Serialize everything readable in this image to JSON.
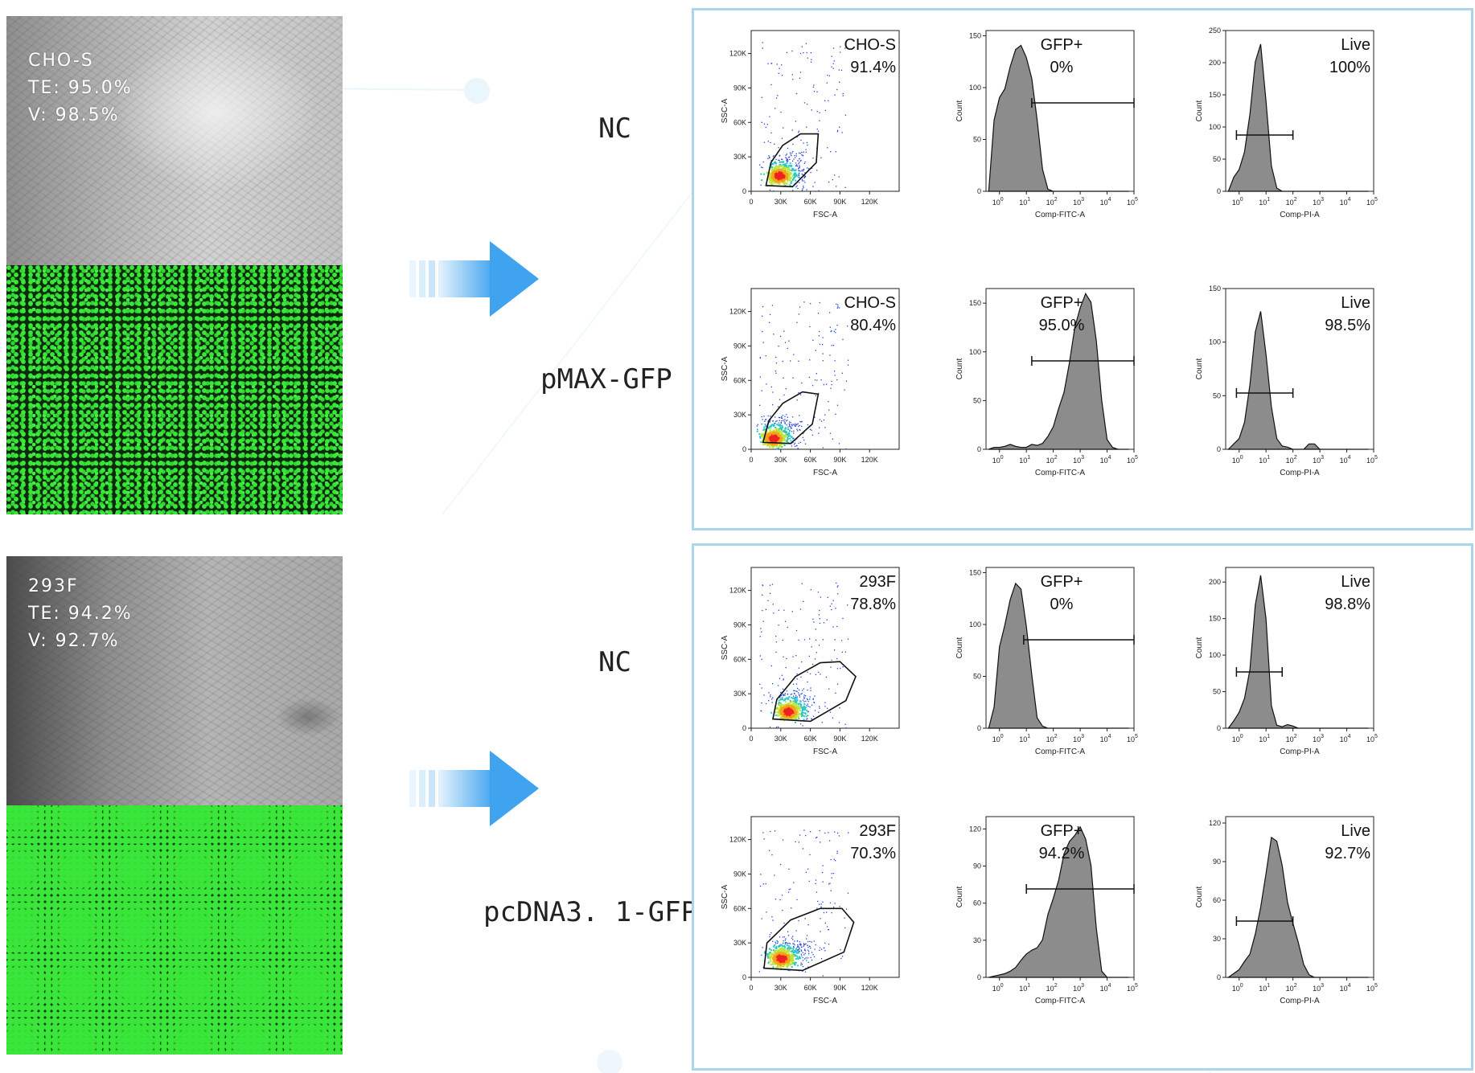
{
  "colors": {
    "panel_border": "#a9d6ea",
    "arrow": "#3fa3ef",
    "histogram_fill": "#8c8c8c",
    "gfp_green": "#39e639"
  },
  "rows": [
    {
      "cell_label": "CHO-S",
      "te": "TE: 95.0%",
      "v": "V: 98.5%",
      "conditions": [
        {
          "name": "NC",
          "scatter": {
            "population": "CHO-S",
            "percent": "91.4%",
            "xlabel": "FSC-A",
            "ylabel": "SSC-A",
            "xticks": [
              "0",
              "30K",
              "60K",
              "90K",
              "120K"
            ],
            "yticks": [
              "0",
              "30K",
              "60K",
              "90K",
              "120K"
            ]
          },
          "gfp": {
            "title": "GFP+",
            "percent": "0%",
            "xlabel": "Comp-FITC-A",
            "ylabel": "Count",
            "yticks": [
              "0",
              "50",
              "100",
              "150"
            ]
          },
          "live": {
            "title": "Live",
            "percent": "100%",
            "xlabel": "Comp-PI-A",
            "ylabel": "Count",
            "yticks": [
              "0",
              "50",
              "100",
              "150",
              "200",
              "250"
            ]
          }
        },
        {
          "name": "pMAX-GFP",
          "scatter": {
            "population": "CHO-S",
            "percent": "80.4%",
            "xlabel": "FSC-A",
            "ylabel": "SSC-A",
            "xticks": [
              "0",
              "30K",
              "60K",
              "90K",
              "120K"
            ],
            "yticks": [
              "0",
              "30K",
              "60K",
              "90K",
              "120K"
            ]
          },
          "gfp": {
            "title": "GFP+",
            "percent": "95.0%",
            "xlabel": "Comp-FITC-A",
            "ylabel": "Count",
            "yticks": [
              "0",
              "50",
              "100",
              "150"
            ]
          },
          "live": {
            "title": "Live",
            "percent": "98.5%",
            "xlabel": "Comp-PI-A",
            "ylabel": "Count",
            "yticks": [
              "0",
              "50",
              "100",
              "150"
            ]
          }
        }
      ]
    },
    {
      "cell_label": "293F",
      "te": "TE: 94.2%",
      "v": "V: 92.7%",
      "conditions": [
        {
          "name": "NC",
          "scatter": {
            "population": "293F",
            "percent": "78.8%",
            "xlabel": "FSC-A",
            "ylabel": "SSC-A",
            "xticks": [
              "0",
              "30K",
              "60K",
              "90K",
              "120K"
            ],
            "yticks": [
              "0",
              "30K",
              "60K",
              "90K",
              "120K"
            ]
          },
          "gfp": {
            "title": "GFP+",
            "percent": "0%",
            "xlabel": "Comp-FITC-A",
            "ylabel": "Count",
            "yticks": [
              "0",
              "50",
              "100",
              "150"
            ]
          },
          "live": {
            "title": "Live",
            "percent": "98.8%",
            "xlabel": "Comp-PI-A",
            "ylabel": "Count",
            "yticks": [
              "0",
              "50",
              "100",
              "150",
              "200"
            ]
          }
        },
        {
          "name": "pcDNA3. 1-GFP",
          "scatter": {
            "population": "293F",
            "percent": "70.3%",
            "xlabel": "FSC-A",
            "ylabel": "SSC-A",
            "xticks": [
              "0",
              "30K",
              "60K",
              "90K",
              "120K"
            ],
            "yticks": [
              "0",
              "30K",
              "60K",
              "90K",
              "120K"
            ]
          },
          "gfp": {
            "title": "GFP+",
            "percent": "94.2%",
            "xlabel": "Comp-FITC-A",
            "ylabel": "Count",
            "yticks": [
              "0",
              "30",
              "60",
              "90",
              "120"
            ]
          },
          "live": {
            "title": "Live",
            "percent": "92.7%",
            "xlabel": "Comp-PI-A",
            "ylabel": "Count",
            "yticks": [
              "0",
              "30",
              "60",
              "90",
              "120"
            ]
          }
        }
      ]
    }
  ],
  "chart_data": [
    {
      "type": "scatter",
      "title": "CHO-S",
      "annotation": "91.4%",
      "xlabel": "FSC-A",
      "ylabel": "SSC-A",
      "xlim": [
        0,
        150000
      ],
      "ylim": [
        0,
        140000
      ],
      "gate_polygon": [
        [
          15000,
          5000
        ],
        [
          20000,
          25000
        ],
        [
          32000,
          40000
        ],
        [
          50000,
          50000
        ],
        [
          68000,
          50000
        ],
        [
          66000,
          25000
        ],
        [
          42000,
          4000
        ]
      ],
      "density_peak": [
        28000,
        14000
      ]
    },
    {
      "type": "area",
      "title": "GFP+",
      "annotation": "0%",
      "xlabel": "Comp-FITC-A",
      "ylabel": "Count",
      "xscale": "log",
      "ylim": [
        0,
        155
      ],
      "x": [
        0.6,
        0.8,
        1,
        1.2,
        1.4,
        1.6,
        1.8,
        2,
        2.2,
        2.4,
        2.6,
        2.8,
        3,
        3.2,
        3.4,
        3.6,
        3.8,
        4,
        4.2,
        4.4,
        4.6,
        4.8,
        5,
        5.2,
        5.4,
        5.6,
        5.8
      ],
      "values": [
        0,
        70,
        90,
        100,
        120,
        135,
        140,
        130,
        110,
        70,
        20,
        2,
        0,
        0,
        0,
        0,
        0,
        0,
        0,
        0,
        0,
        0,
        0,
        0,
        0,
        0,
        0
      ],
      "gate_range_log": [
        2.2,
        6
      ]
    },
    {
      "type": "area",
      "title": "Live",
      "annotation": "100%",
      "xlabel": "Comp-PI-A",
      "ylabel": "Count",
      "xscale": "log",
      "ylim": [
        0,
        250
      ],
      "x": [
        0.6,
        0.8,
        1,
        1.2,
        1.4,
        1.6,
        1.8,
        2,
        2.2,
        2.4,
        2.6,
        2.8,
        3,
        3.2,
        3.4,
        3.6,
        3.8,
        4,
        4.2,
        4.4,
        4.6,
        4.8,
        5,
        5.2,
        5.4,
        5.6,
        5.8
      ],
      "values": [
        0,
        20,
        35,
        60,
        120,
        200,
        230,
        140,
        40,
        5,
        0,
        0,
        0,
        0,
        0,
        0,
        0,
        0,
        0,
        0,
        0,
        0,
        0,
        0,
        0,
        0,
        0
      ],
      "gate_range_log": [
        0.9,
        3.0
      ]
    },
    {
      "type": "scatter",
      "title": "CHO-S",
      "annotation": "80.4%",
      "xlabel": "FSC-A",
      "ylabel": "SSC-A",
      "xlim": [
        0,
        150000
      ],
      "ylim": [
        0,
        140000
      ],
      "gate_polygon": [
        [
          12000,
          6000
        ],
        [
          18000,
          25000
        ],
        [
          32000,
          40000
        ],
        [
          52000,
          50000
        ],
        [
          68000,
          48000
        ],
        [
          62000,
          22000
        ],
        [
          40000,
          5000
        ]
      ],
      "density_peak": [
        22000,
        10000
      ]
    },
    {
      "type": "area",
      "title": "GFP+",
      "annotation": "95.0%",
      "xlabel": "Comp-FITC-A",
      "ylabel": "Count",
      "xscale": "log",
      "ylim": [
        0,
        165
      ],
      "x": [
        0.6,
        0.8,
        1,
        1.2,
        1.4,
        1.6,
        1.8,
        2,
        2.2,
        2.4,
        2.6,
        2.8,
        3,
        3.2,
        3.4,
        3.6,
        3.8,
        4,
        4.2,
        4.4,
        4.6,
        4.8,
        5,
        5.2,
        5.4,
        5.6,
        5.8
      ],
      "values": [
        0,
        2,
        2,
        3,
        5,
        3,
        2,
        2,
        5,
        4,
        6,
        12,
        25,
        40,
        60,
        90,
        125,
        145,
        160,
        150,
        110,
        50,
        10,
        2,
        0,
        0,
        0
      ],
      "gate_range_log": [
        2.2,
        6
      ]
    },
    {
      "type": "area",
      "title": "Live",
      "annotation": "98.5%",
      "xlabel": "Comp-PI-A",
      "ylabel": "Count",
      "xscale": "log",
      "ylim": [
        0,
        150
      ],
      "x": [
        0.6,
        0.8,
        1,
        1.2,
        1.4,
        1.6,
        1.8,
        2,
        2.2,
        2.4,
        2.6,
        2.8,
        3,
        3.2,
        3.4,
        3.6,
        3.8,
        4,
        4.2,
        4.4,
        4.6,
        4.8,
        5,
        5.2,
        5.4,
        5.6,
        5.8
      ],
      "values": [
        0,
        5,
        10,
        25,
        60,
        110,
        130,
        90,
        40,
        10,
        3,
        2,
        0,
        0,
        0,
        5,
        5,
        0,
        0,
        0,
        0,
        0,
        0,
        0,
        0,
        0,
        0
      ],
      "gate_range_log": [
        0.9,
        3.0
      ]
    },
    {
      "type": "scatter",
      "title": "293F",
      "annotation": "78.8%",
      "xlabel": "FSC-A",
      "ylabel": "SSC-A",
      "xlim": [
        0,
        150000
      ],
      "ylim": [
        0,
        140000
      ],
      "gate_polygon": [
        [
          22000,
          8000
        ],
        [
          26000,
          25000
        ],
        [
          45000,
          45000
        ],
        [
          70000,
          57000
        ],
        [
          90000,
          58000
        ],
        [
          106000,
          45000
        ],
        [
          96000,
          24000
        ],
        [
          60000,
          6000
        ]
      ],
      "density_peak": [
        37000,
        15000
      ]
    },
    {
      "type": "area",
      "title": "GFP+",
      "annotation": "0%",
      "xlabel": "Comp-FITC-A",
      "ylabel": "Count",
      "xscale": "log",
      "ylim": [
        0,
        155
      ],
      "x": [
        0.6,
        0.8,
        1,
        1.2,
        1.4,
        1.6,
        1.8,
        2,
        2.2,
        2.4,
        2.6,
        2.8,
        3,
        3.2,
        3.4,
        3.6,
        3.8,
        4,
        4.2,
        4.4,
        4.6,
        4.8,
        5,
        5.2,
        5.4,
        5.6,
        5.8
      ],
      "values": [
        0,
        20,
        80,
        100,
        125,
        140,
        135,
        100,
        50,
        10,
        2,
        0,
        0,
        0,
        0,
        0,
        0,
        0,
        0,
        0,
        0,
        0,
        0,
        0,
        0,
        0,
        0
      ],
      "gate_range_log": [
        1.9,
        6
      ]
    },
    {
      "type": "area",
      "title": "Live",
      "annotation": "98.8%",
      "xlabel": "Comp-PI-A",
      "ylabel": "Count",
      "xscale": "log",
      "ylim": [
        0,
        220
      ],
      "x": [
        0.6,
        0.8,
        1,
        1.2,
        1.4,
        1.6,
        1.8,
        2,
        2.2,
        2.4,
        2.6,
        2.8,
        3,
        3.2,
        3.4,
        3.6,
        3.8,
        4,
        4.2,
        4.4,
        4.6,
        4.8,
        5,
        5.2,
        5.4,
        5.6,
        5.8
      ],
      "values": [
        0,
        10,
        20,
        40,
        80,
        170,
        210,
        150,
        30,
        4,
        2,
        5,
        3,
        0,
        0,
        0,
        0,
        0,
        0,
        0,
        0,
        0,
        0,
        0,
        0,
        0,
        0
      ],
      "gate_range_log": [
        0.9,
        2.6
      ]
    },
    {
      "type": "scatter",
      "title": "293F",
      "annotation": "70.3%",
      "xlabel": "FSC-A",
      "ylabel": "SSC-A",
      "xlim": [
        0,
        150000
      ],
      "ylim": [
        0,
        140000
      ],
      "gate_polygon": [
        [
          13000,
          8000
        ],
        [
          16000,
          30000
        ],
        [
          40000,
          50000
        ],
        [
          70000,
          60000
        ],
        [
          92000,
          60000
        ],
        [
          104000,
          48000
        ],
        [
          94000,
          22000
        ],
        [
          52000,
          6000
        ]
      ],
      "density_peak": [
        30000,
        17000
      ]
    },
    {
      "type": "area",
      "title": "GFP+",
      "annotation": "94.2%",
      "xlabel": "Comp-FITC-A",
      "ylabel": "Count",
      "xscale": "log",
      "ylim": [
        0,
        130
      ],
      "x": [
        0.6,
        0.8,
        1,
        1.2,
        1.4,
        1.6,
        1.8,
        2,
        2.2,
        2.4,
        2.6,
        2.8,
        3,
        3.2,
        3.4,
        3.6,
        3.8,
        4,
        4.2,
        4.4,
        4.6,
        4.8,
        5,
        5.2,
        5.4,
        5.6,
        5.8
      ],
      "values": [
        0,
        1,
        2,
        3,
        5,
        8,
        12,
        18,
        20,
        22,
        30,
        50,
        65,
        80,
        100,
        110,
        115,
        120,
        110,
        90,
        40,
        5,
        0,
        0,
        0,
        0,
        0
      ],
      "gate_range_log": [
        2.0,
        6
      ]
    },
    {
      "type": "area",
      "title": "Live",
      "annotation": "92.7%",
      "xlabel": "Comp-PI-A",
      "ylabel": "Count",
      "xscale": "log",
      "ylim": [
        0,
        125
      ],
      "x": [
        0.6,
        0.8,
        1,
        1.2,
        1.4,
        1.6,
        1.8,
        2,
        2.2,
        2.4,
        2.6,
        2.8,
        3,
        3.2,
        3.4,
        3.6,
        3.8,
        4,
        4.2,
        4.4,
        4.6,
        4.8,
        5,
        5.2,
        5.4,
        5.6,
        5.8
      ],
      "values": [
        0,
        3,
        6,
        12,
        20,
        35,
        55,
        80,
        110,
        105,
        85,
        60,
        40,
        25,
        10,
        2,
        0,
        0,
        0,
        0,
        0,
        0,
        0,
        0,
        0,
        0,
        0
      ],
      "gate_range_log": [
        0.9,
        3.0
      ]
    }
  ]
}
